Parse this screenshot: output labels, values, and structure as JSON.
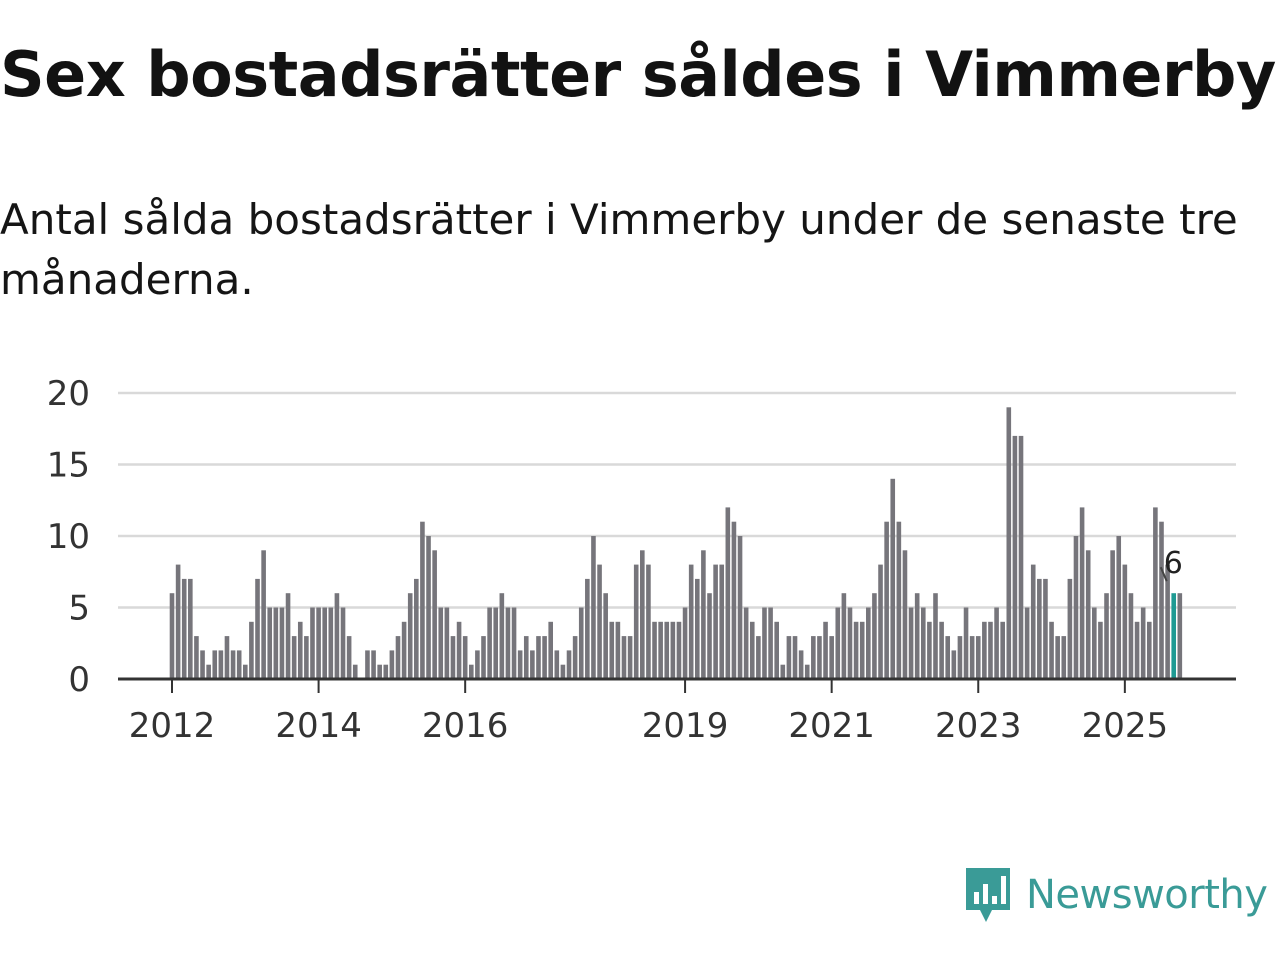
{
  "title": "Sex bostadsrätter såldes i Vimmerby",
  "subtitle": "Antal sålda bostadsrätter i Vimmerby under de senaste tre månaderna.",
  "brand": {
    "name": "Newsworthy",
    "icon": "newsworthy-logo-icon",
    "color": "#3a9b97"
  },
  "colors": {
    "bar": "#76757b",
    "highlight": "#1f9a93",
    "grid": "#d9d9d9",
    "axis": "#333333"
  },
  "chart_data": {
    "type": "bar",
    "title": "",
    "xlabel": "",
    "ylabel": "",
    "ylim": [
      0,
      20
    ],
    "yticks": [
      0,
      5,
      10,
      15,
      20
    ],
    "start": {
      "year": 2012,
      "month": 1
    },
    "x_tick_labels": [
      "2012",
      "2014",
      "2016",
      "2019",
      "2021",
      "2023",
      "2025"
    ],
    "values": [
      6,
      8,
      7,
      7,
      3,
      2,
      1,
      2,
      2,
      3,
      2,
      2,
      1,
      4,
      7,
      9,
      5,
      5,
      5,
      6,
      3,
      4,
      3,
      5,
      5,
      5,
      5,
      6,
      5,
      3,
      1,
      0,
      2,
      2,
      1,
      1,
      2,
      3,
      4,
      6,
      7,
      11,
      10,
      9,
      5,
      5,
      3,
      4,
      3,
      1,
      2,
      3,
      5,
      5,
      6,
      5,
      5,
      2,
      3,
      2,
      3,
      3,
      4,
      2,
      1,
      2,
      3,
      5,
      7,
      10,
      8,
      6,
      4,
      4,
      3,
      3,
      8,
      9,
      8,
      4,
      4,
      4,
      4,
      4,
      5,
      8,
      7,
      9,
      6,
      8,
      8,
      12,
      11,
      10,
      5,
      4,
      3,
      5,
      5,
      4,
      1,
      3,
      3,
      2,
      1,
      3,
      3,
      4,
      3,
      5,
      6,
      5,
      4,
      4,
      5,
      6,
      8,
      11,
      14,
      11,
      9,
      5,
      6,
      5,
      4,
      6,
      4,
      3,
      2,
      3,
      5,
      3,
      3,
      4,
      4,
      5,
      4,
      19,
      17,
      17,
      5,
      8,
      7,
      7,
      4,
      3,
      3,
      7,
      10,
      12,
      9,
      5,
      4,
      6,
      9,
      10,
      8,
      6,
      4,
      5,
      4,
      12,
      11,
      8,
      6,
      6
    ],
    "highlight": {
      "index": 164,
      "label": "6"
    }
  }
}
